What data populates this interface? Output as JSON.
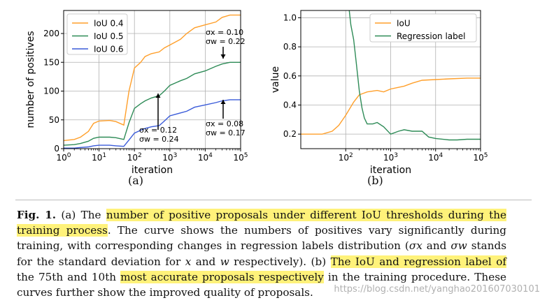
{
  "chart_data": [
    {
      "type": "line",
      "xscale": "log",
      "xlabel": "iteration",
      "ylabel": "number of positives",
      "xlim": [
        1,
        100000
      ],
      "ylim": [
        0,
        240
      ],
      "xticks": [
        "10^0",
        "10^1",
        "10^2",
        "10^3",
        "10^4",
        "10^5"
      ],
      "yticks": [
        "0",
        "50",
        "100",
        "150",
        "200"
      ],
      "legend_position": "top-left",
      "grid": true,
      "series": [
        {
          "name": "IoU 0.4",
          "color": "#ff9f2a",
          "x": [
            1,
            2,
            3,
            5,
            7,
            10,
            20,
            30,
            50,
            70,
            100,
            150,
            200,
            300,
            500,
            700,
            1000,
            2000,
            3000,
            5000,
            10000,
            20000,
            30000,
            50000,
            100000
          ],
          "y": [
            14,
            16,
            20,
            30,
            44,
            48,
            49,
            47,
            41,
            100,
            140,
            150,
            160,
            165,
            168,
            175,
            180,
            190,
            200,
            210,
            215,
            220,
            228,
            232,
            232
          ]
        },
        {
          "name": "IoU 0.5",
          "color": "#2e8b57",
          "x": [
            1,
            2,
            3,
            5,
            7,
            10,
            20,
            30,
            50,
            70,
            100,
            150,
            200,
            300,
            500,
            700,
            1000,
            2000,
            3000,
            5000,
            10000,
            20000,
            30000,
            50000,
            100000
          ],
          "y": [
            6,
            7,
            9,
            13,
            18,
            20,
            20,
            19,
            16,
            45,
            70,
            78,
            83,
            88,
            92,
            100,
            110,
            118,
            122,
            130,
            135,
            143,
            147,
            150,
            150
          ]
        },
        {
          "name": "IoU 0.6",
          "color": "#3a5bd9",
          "x": [
            1,
            2,
            3,
            5,
            7,
            10,
            20,
            30,
            50,
            70,
            100,
            150,
            200,
            300,
            500,
            700,
            1000,
            2000,
            3000,
            5000,
            10000,
            20000,
            30000,
            50000,
            100000
          ],
          "y": [
            1,
            1,
            2,
            3,
            5,
            6,
            6,
            5,
            4,
            15,
            27,
            32,
            35,
            38,
            40,
            48,
            57,
            62,
            65,
            72,
            76,
            80,
            83,
            85,
            85
          ]
        }
      ],
      "annotations": [
        {
          "text_x": "σx = 0.10",
          "text_w": "σw = 0.22",
          "arrow": "down"
        },
        {
          "text_x": "σx = 0.08",
          "text_w": "σw = 0.17",
          "arrow": "up"
        },
        {
          "text_x": "σx = 0.12",
          "text_w": "σw = 0.24",
          "arrow": "up"
        }
      ]
    },
    {
      "type": "line",
      "xscale": "log",
      "xlabel": "iteration",
      "ylabel": "value",
      "xlim": [
        10,
        100000
      ],
      "ylim": [
        0.1,
        1.05
      ],
      "xticks": [
        "10^2",
        "10^3",
        "10^4",
        "10^5"
      ],
      "yticks": [
        "0.2",
        "0.4",
        "0.6",
        "0.8",
        "1.0"
      ],
      "legend_position": "top-right",
      "grid": true,
      "series": [
        {
          "name": "IoU",
          "color": "#ff9f2a",
          "x": [
            10,
            30,
            50,
            70,
            100,
            150,
            200,
            300,
            500,
            700,
            1000,
            2000,
            3000,
            5000,
            10000,
            20000,
            50000,
            100000
          ],
          "y": [
            0.2,
            0.2,
            0.22,
            0.26,
            0.33,
            0.42,
            0.47,
            0.49,
            0.5,
            0.49,
            0.51,
            0.53,
            0.55,
            0.57,
            0.575,
            0.58,
            0.585,
            0.585
          ]
        },
        {
          "name": "Regression label",
          "color": "#2e8b57",
          "x": [
            120,
            130,
            150,
            170,
            200,
            230,
            260,
            300,
            400,
            500,
            700,
            1000,
            1500,
            2000,
            3000,
            5000,
            7000,
            10000,
            20000,
            30000,
            50000,
            100000
          ],
          "y": [
            1.05,
            0.95,
            0.85,
            0.7,
            0.5,
            0.38,
            0.31,
            0.27,
            0.27,
            0.28,
            0.25,
            0.2,
            0.22,
            0.23,
            0.22,
            0.22,
            0.18,
            0.17,
            0.16,
            0.16,
            0.165,
            0.165
          ]
        }
      ]
    }
  ],
  "labels": {
    "left": "(a)",
    "right": "(b)"
  },
  "caption": {
    "fig": "Fig. 1.",
    "p1": " (a) The ",
    "h1": "number of positive proposals under different IoU thresholds during the training process",
    "p2": ". The curve shows the numbers of positives vary significantly during training, with corresponding changes in regression labels distribution (",
    "sx": "σx",
    "p3": " and ",
    "sw": "σw",
    "p4": " stands for the standard deviation for ",
    "vx": "x",
    "p5": " and ",
    "vw": "w",
    "p6": " respectively). (b) ",
    "h2": "The IoU and regression label of",
    "p7": " the 75th and 10th ",
    "h3": "most accurate proposals respectively",
    "p8": " in the training procedure. These curves further show the improved quality of proposals."
  },
  "watermark": "https://blog.csdn.net/yanghao201607030101"
}
